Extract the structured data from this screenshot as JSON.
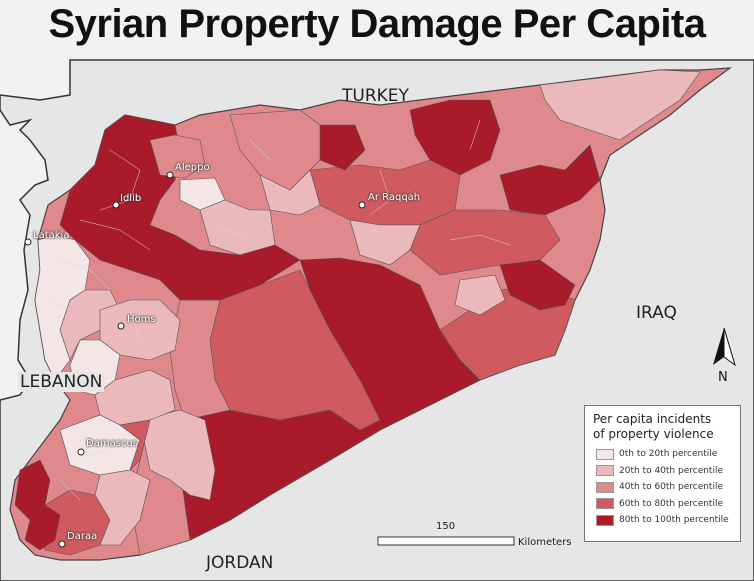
{
  "title": "Syrian Property Damage Per Capita",
  "countries": {
    "turkey": "TURKEY",
    "iraq": "IRAQ",
    "lebanon": "LEBANON",
    "jordan": "JORDAN"
  },
  "cities": {
    "aleppo": "Aleppo",
    "idlib": "Idlib",
    "latakia": "Latakia",
    "ar_raqqah": "Ar Raqqah",
    "homs": "Homs",
    "damascus": "Damascus",
    "daraa": "Daraa"
  },
  "legend": {
    "title_line1": "Per capita incidents",
    "title_line2": "of property violence",
    "classes": [
      {
        "label": "0th to 20th percentile",
        "color": "#f4e6e6"
      },
      {
        "label": "20th to 40th percentile",
        "color": "#ebb8bb"
      },
      {
        "label": "40th to 60th percentile",
        "color": "#df898d"
      },
      {
        "label": "60th to 80th percentile",
        "color": "#cf5a60"
      },
      {
        "label": "80th to 100th percentile",
        "color": "#a91a2b"
      }
    ]
  },
  "scale_bar": {
    "value": "150",
    "unit": "Kilometers"
  },
  "north_arrow": "N",
  "colors": {
    "background": "#e8e8e8",
    "outside_land": "#ededed",
    "border": "#555555"
  }
}
